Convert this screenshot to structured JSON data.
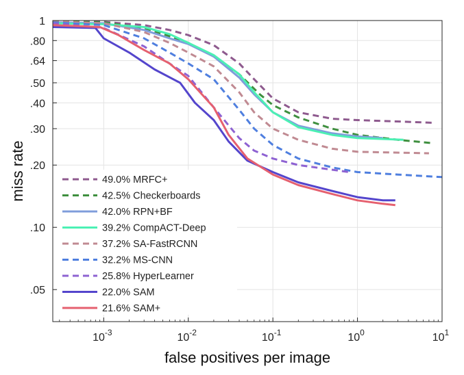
{
  "chart_data": {
    "type": "line",
    "xlabel": "false positives per image",
    "ylabel": "miss rate",
    "x_scale": "log",
    "y_scale": "log",
    "xlim": [
      0.00025,
      10
    ],
    "ylim": [
      0.035,
      1
    ],
    "x_ticks": [
      {
        "value": 0.001,
        "base": "10",
        "exp": "-3"
      },
      {
        "value": 0.01,
        "base": "10",
        "exp": "-2"
      },
      {
        "value": 0.1,
        "base": "10",
        "exp": "-1"
      },
      {
        "value": 1,
        "base": "10",
        "exp": "0"
      },
      {
        "value": 10,
        "base": "10",
        "exp": "1"
      }
    ],
    "y_ticks": [
      {
        "value": 1,
        "label": "1"
      },
      {
        "value": 0.8,
        "label": ".80"
      },
      {
        "value": 0.64,
        "label": ".64"
      },
      {
        "value": 0.5,
        "label": ".50"
      },
      {
        "value": 0.4,
        "label": ".40"
      },
      {
        "value": 0.3,
        "label": ".30"
      },
      {
        "value": 0.2,
        "label": ".20"
      },
      {
        "value": 0.1,
        "label": ".10"
      },
      {
        "value": 0.05,
        "label": ".05"
      }
    ],
    "grid": true,
    "legend_position": "bottom-left",
    "series": [
      {
        "name": "49.0% MRFC+",
        "color": "#8e5a8e",
        "dash": true,
        "points": [
          [
            0.00025,
            0.99
          ],
          [
            0.001,
            0.985
          ],
          [
            0.003,
            0.95
          ],
          [
            0.006,
            0.9
          ],
          [
            0.01,
            0.85
          ],
          [
            0.02,
            0.76
          ],
          [
            0.04,
            0.62
          ],
          [
            0.06,
            0.52
          ],
          [
            0.1,
            0.42
          ],
          [
            0.2,
            0.36
          ],
          [
            0.5,
            0.335
          ],
          [
            1,
            0.33
          ],
          [
            3,
            0.325
          ],
          [
            8,
            0.32
          ]
        ]
      },
      {
        "name": "42.5% Checkerboards",
        "color": "#3f8f3f",
        "dash": true,
        "points": [
          [
            0.00025,
            0.99
          ],
          [
            0.001,
            0.98
          ],
          [
            0.003,
            0.92
          ],
          [
            0.006,
            0.84
          ],
          [
            0.01,
            0.78
          ],
          [
            0.02,
            0.67
          ],
          [
            0.04,
            0.55
          ],
          [
            0.07,
            0.44
          ],
          [
            0.1,
            0.39
          ],
          [
            0.2,
            0.34
          ],
          [
            0.5,
            0.3
          ],
          [
            1,
            0.28
          ],
          [
            3,
            0.265
          ],
          [
            8,
            0.255
          ]
        ]
      },
      {
        "name": "42.0% RPN+BF",
        "color": "#7f9ddb",
        "dash": false,
        "points": [
          [
            0.00025,
            0.98
          ],
          [
            0.001,
            0.97
          ],
          [
            0.003,
            0.9
          ],
          [
            0.006,
            0.82
          ],
          [
            0.01,
            0.77
          ],
          [
            0.02,
            0.67
          ],
          [
            0.04,
            0.53
          ],
          [
            0.06,
            0.44
          ],
          [
            0.1,
            0.36
          ],
          [
            0.2,
            0.31
          ],
          [
            0.5,
            0.285
          ],
          [
            1,
            0.275
          ],
          [
            2,
            0.27
          ]
        ]
      },
      {
        "name": "39.2% CompACT-Deep",
        "color": "#4cf0b4",
        "dash": false,
        "points": [
          [
            0.00025,
            0.97
          ],
          [
            0.001,
            0.96
          ],
          [
            0.003,
            0.93
          ],
          [
            0.006,
            0.86
          ],
          [
            0.01,
            0.78
          ],
          [
            0.02,
            0.68
          ],
          [
            0.04,
            0.55
          ],
          [
            0.06,
            0.45
          ],
          [
            0.1,
            0.36
          ],
          [
            0.2,
            0.305
          ],
          [
            0.5,
            0.28
          ],
          [
            1,
            0.27
          ],
          [
            3.5,
            0.265
          ]
        ]
      },
      {
        "name": "37.2% SA-FastRCNN",
        "color": "#c08a92",
        "dash": true,
        "points": [
          [
            0.00025,
            0.99
          ],
          [
            0.001,
            0.97
          ],
          [
            0.003,
            0.88
          ],
          [
            0.006,
            0.78
          ],
          [
            0.01,
            0.7
          ],
          [
            0.02,
            0.6
          ],
          [
            0.04,
            0.45
          ],
          [
            0.06,
            0.36
          ],
          [
            0.1,
            0.3
          ],
          [
            0.2,
            0.265
          ],
          [
            0.5,
            0.24
          ],
          [
            1,
            0.232
          ],
          [
            7,
            0.228
          ]
        ]
      },
      {
        "name": "32.2% MS-CNN",
        "color": "#4f7fdf",
        "dash": true,
        "points": [
          [
            0.00025,
            0.98
          ],
          [
            0.001,
            0.95
          ],
          [
            0.003,
            0.82
          ],
          [
            0.006,
            0.7
          ],
          [
            0.01,
            0.62
          ],
          [
            0.02,
            0.52
          ],
          [
            0.04,
            0.37
          ],
          [
            0.06,
            0.3
          ],
          [
            0.1,
            0.25
          ],
          [
            0.2,
            0.215
          ],
          [
            0.5,
            0.195
          ],
          [
            1,
            0.185
          ],
          [
            3,
            0.18
          ],
          [
            10,
            0.175
          ]
        ]
      },
      {
        "name": "25.8% HyperLearner",
        "color": "#8e62d2",
        "dash": true,
        "points": [
          [
            0.00025,
            0.97
          ],
          [
            0.001,
            0.92
          ],
          [
            0.003,
            0.75
          ],
          [
            0.006,
            0.62
          ],
          [
            0.01,
            0.54
          ],
          [
            0.02,
            0.38
          ],
          [
            0.04,
            0.27
          ],
          [
            0.06,
            0.235
          ],
          [
            0.1,
            0.215
          ],
          [
            0.2,
            0.2
          ],
          [
            0.5,
            0.19
          ],
          [
            0.8,
            0.185
          ]
        ]
      },
      {
        "name": "22.0% SAM",
        "color": "#5445cc",
        "dash": false,
        "points": [
          [
            0.00025,
            0.93
          ],
          [
            0.0008,
            0.92
          ],
          [
            0.001,
            0.82
          ],
          [
            0.002,
            0.7
          ],
          [
            0.004,
            0.58
          ],
          [
            0.008,
            0.5
          ],
          [
            0.012,
            0.4
          ],
          [
            0.02,
            0.33
          ],
          [
            0.03,
            0.26
          ],
          [
            0.05,
            0.21
          ],
          [
            0.1,
            0.185
          ],
          [
            0.2,
            0.165
          ],
          [
            0.5,
            0.15
          ],
          [
            1,
            0.14
          ],
          [
            2,
            0.135
          ],
          [
            2.8,
            0.135
          ]
        ]
      },
      {
        "name": "21.6% SAM+",
        "color": "#e5606f",
        "dash": false,
        "points": [
          [
            0.00025,
            0.95
          ],
          [
            0.0009,
            0.93
          ],
          [
            0.0015,
            0.85
          ],
          [
            0.003,
            0.72
          ],
          [
            0.006,
            0.62
          ],
          [
            0.01,
            0.52
          ],
          [
            0.02,
            0.38
          ],
          [
            0.03,
            0.28
          ],
          [
            0.05,
            0.215
          ],
          [
            0.1,
            0.18
          ],
          [
            0.2,
            0.16
          ],
          [
            0.5,
            0.145
          ],
          [
            1,
            0.135
          ],
          [
            2,
            0.13
          ],
          [
            2.8,
            0.128
          ]
        ]
      }
    ]
  }
}
